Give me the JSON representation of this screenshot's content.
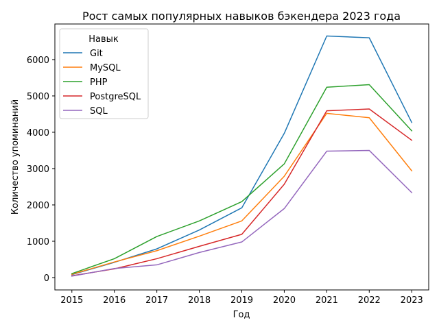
{
  "chart_data": {
    "type": "line",
    "title": "Рост самых популярных навыков бэкендера 2023 года",
    "xlabel": "Год",
    "ylabel": "Количество упоминаний",
    "x": [
      2015,
      2016,
      2017,
      2018,
      2019,
      2020,
      2021,
      2022,
      2023
    ],
    "x_ticks": [
      "2015",
      "2016",
      "2017",
      "2018",
      "2019",
      "2020",
      "2021",
      "2022",
      "2023"
    ],
    "y_ticks": [
      0,
      1000,
      2000,
      3000,
      4000,
      5000,
      6000
    ],
    "xlim": [
      2014.6,
      2023.4
    ],
    "ylim": [
      -340,
      6980
    ],
    "grid": false,
    "legend": {
      "title": "Навык",
      "placement": "top-left"
    },
    "series": [
      {
        "name": "Git",
        "color": "#1f77b4",
        "values": [
          80,
          420,
          790,
          1310,
          1920,
          3970,
          6650,
          6600,
          4270
        ]
      },
      {
        "name": "MySQL",
        "color": "#ff7f0e",
        "values": [
          90,
          430,
          740,
          1140,
          1560,
          2790,
          4520,
          4400,
          2940
        ]
      },
      {
        "name": "PHP",
        "color": "#2ca02c",
        "values": [
          110,
          520,
          1130,
          1560,
          2090,
          3130,
          5240,
          5310,
          4040
        ]
      },
      {
        "name": "PostgreSQL",
        "color": "#d62728",
        "values": [
          50,
          240,
          520,
          860,
          1190,
          2570,
          4590,
          4640,
          3780
        ]
      },
      {
        "name": "SQL",
        "color": "#9467bd",
        "values": [
          40,
          250,
          350,
          690,
          980,
          1900,
          3480,
          3500,
          2340
        ]
      }
    ]
  }
}
